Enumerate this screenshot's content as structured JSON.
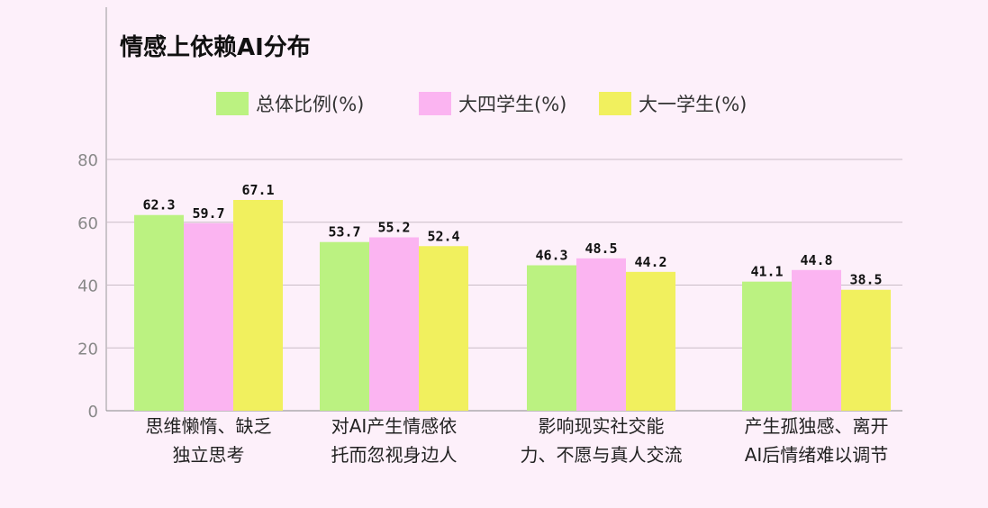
{
  "chart_data": {
    "type": "bar",
    "title": "情感上依赖AI分布",
    "xlabel": "",
    "ylabel": "",
    "ylim": [
      0,
      80
    ],
    "yticks": [
      0,
      20,
      40,
      60,
      80
    ],
    "grid": true,
    "legend_position": "top",
    "categories": [
      [
        "思维懒惰、缺乏",
        "独立思考"
      ],
      [
        "对AI产生情感依",
        "托而忽视身边人"
      ],
      [
        "影响现实社交能",
        "力、不愿与真人交流"
      ],
      [
        "产生孤独感、离开",
        "AI后情绪难以调节"
      ]
    ],
    "series": [
      {
        "name": "总体比例(%)",
        "color": "#bbf281",
        "values": [
          62.3,
          53.7,
          46.3,
          41.1
        ]
      },
      {
        "name": "大四学生(%)",
        "color": "#fbb4f1",
        "values": [
          59.7,
          55.2,
          48.5,
          44.8
        ]
      },
      {
        "name": "大一学生(%)",
        "color": "#f1f05e",
        "values": [
          67.1,
          52.4,
          44.2,
          38.5
        ]
      }
    ]
  }
}
